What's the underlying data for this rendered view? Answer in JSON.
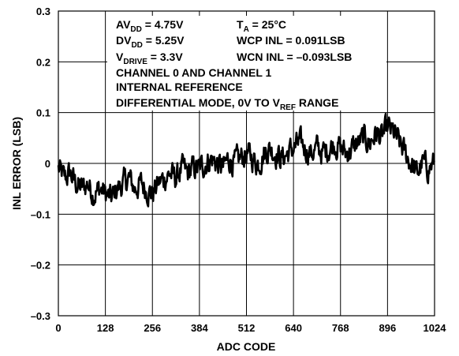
{
  "chart_data": {
    "type": "line",
    "xlabel": "ADC CODE",
    "ylabel": "INL ERROR (LSB)",
    "xlim": [
      0,
      1024
    ],
    "ylim": [
      -0.3,
      0.3
    ],
    "xticks": [
      "0",
      "128",
      "256",
      "384",
      "512",
      "640",
      "768",
      "896",
      "1024"
    ],
    "yticks": [
      "0.3",
      "0.2",
      "0.1",
      "0",
      "–0.1",
      "–0.2",
      "–0.3"
    ],
    "grid": true,
    "annotations": [
      [
        {
          "t": "AV"
        },
        {
          "t": "DD",
          "sub": true
        },
        {
          "t": " = 4.75V"
        }
      ],
      [
        {
          "t": "DV"
        },
        {
          "t": "DD",
          "sub": true
        },
        {
          "t": " = 5.25V"
        }
      ],
      [
        {
          "t": "V"
        },
        {
          "t": "DRIVE",
          "sub": true
        },
        {
          "t": " = 3.3V"
        }
      ],
      [
        {
          "t": "T"
        },
        {
          "t": "A",
          "sub": true
        },
        {
          "t": " = 25°C"
        }
      ],
      [
        {
          "t": "WCP INL = 0.091LSB"
        }
      ],
      [
        {
          "t": "WCN INL = –0.093LSB"
        }
      ],
      [
        {
          "t": "CHANNEL 0 AND CHANNEL 1"
        }
      ],
      [
        {
          "t": "INTERNAL REFERENCE"
        }
      ],
      [
        {
          "t": "DIFFERENTIAL MODE, 0V TO V"
        },
        {
          "t": "REF",
          "sub": true
        },
        {
          "t": " RANGE"
        }
      ]
    ],
    "series": [
      {
        "x": [
          0,
          16,
          32,
          48,
          64,
          80,
          96,
          112,
          128,
          144,
          160,
          176,
          192,
          208,
          224,
          240,
          256,
          272,
          288,
          304,
          320,
          336,
          352,
          368,
          384,
          400,
          416,
          432,
          448,
          464,
          480,
          496,
          512,
          528,
          544,
          560,
          576,
          592,
          608,
          624,
          640,
          656,
          672,
          688,
          704,
          720,
          736,
          752,
          768,
          784,
          800,
          816,
          832,
          848,
          864,
          880,
          896,
          912,
          928,
          944,
          960,
          976,
          992,
          1008,
          1024
        ],
        "y": [
          -0.01,
          -0.03,
          -0.02,
          -0.04,
          -0.05,
          -0.04,
          -0.06,
          -0.05,
          -0.06,
          -0.07,
          -0.05,
          -0.04,
          -0.03,
          -0.05,
          -0.04,
          -0.05,
          -0.06,
          -0.04,
          -0.03,
          -0.02,
          -0.03,
          -0.01,
          -0.02,
          -0.01,
          -0.01,
          0.0,
          0.01,
          0.0,
          -0.01,
          0.01,
          0.0,
          0.01,
          0.02,
          0.01,
          0.0,
          0.02,
          0.03,
          0.02,
          0.01,
          0.02,
          0.03,
          0.04,
          0.03,
          0.02,
          0.03,
          0.02,
          0.03,
          0.04,
          0.03,
          0.02,
          0.03,
          0.04,
          0.05,
          0.04,
          0.06,
          0.05,
          0.07,
          0.06,
          0.04,
          0.02,
          0.0,
          -0.02,
          0.0,
          -0.01,
          0.0
        ],
        "noise": 0.045
      }
    ]
  }
}
